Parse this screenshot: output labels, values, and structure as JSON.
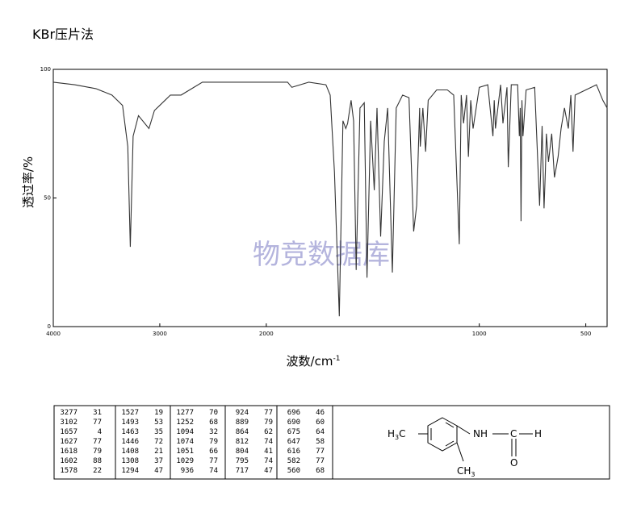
{
  "chart_data": {
    "type": "line",
    "title": "KBr压片法",
    "watermark": "物竞数据库",
    "xlabel": {
      "text": "波数/cm",
      "sup": "-1"
    },
    "ylabel": "透过率/%",
    "xlim": [
      4000,
      400
    ],
    "xscale_break": 2000,
    "xticks": [
      4000,
      3000,
      2000,
      1000,
      500
    ],
    "ylim": [
      0,
      100
    ],
    "yticks": [
      0,
      50,
      100
    ],
    "color": "#333333",
    "x": [
      4000,
      3800,
      3600,
      3450,
      3350,
      3300,
      3277,
      3250,
      3200,
      3102,
      3050,
      3000,
      2950,
      2900,
      2800,
      2600,
      2500,
      2200,
      2000,
      1900,
      1880,
      1800,
      1720,
      1700,
      1680,
      1657,
      1640,
      1627,
      1618,
      1602,
      1590,
      1578,
      1560,
      1540,
      1527,
      1510,
      1493,
      1480,
      1463,
      1446,
      1430,
      1408,
      1390,
      1360,
      1330,
      1308,
      1294,
      1280,
      1277,
      1265,
      1252,
      1240,
      1200,
      1150,
      1120,
      1094,
      1085,
      1074,
      1060,
      1051,
      1040,
      1029,
      1000,
      960,
      936,
      930,
      924,
      900,
      889,
      870,
      864,
      850,
      820,
      812,
      808,
      804,
      800,
      795,
      780,
      740,
      717,
      705,
      696,
      690,
      685,
      675,
      660,
      647,
      630,
      616,
      600,
      582,
      570,
      560,
      550,
      500,
      450,
      420,
      400
    ],
    "values": [
      95,
      94,
      92.5,
      90,
      86,
      70,
      31,
      74,
      82,
      77,
      84,
      86,
      88,
      90,
      90,
      95,
      95,
      95,
      95,
      95,
      93,
      95,
      94,
      90,
      60,
      4,
      80,
      77,
      79,
      88,
      80,
      22,
      85,
      87,
      19,
      80,
      53,
      85,
      35,
      72,
      85,
      21,
      85,
      90,
      89,
      37,
      47,
      85,
      70,
      85,
      68,
      88,
      92,
      92,
      90,
      32,
      90,
      79,
      90,
      66,
      88,
      77,
      93,
      94,
      74,
      88,
      77,
      94,
      79,
      93,
      62,
      94,
      94,
      74,
      85,
      41,
      88,
      74,
      92,
      93,
      47,
      78,
      46,
      60,
      75,
      64,
      75,
      58,
      66,
      77,
      85,
      77,
      90,
      68,
      90,
      92,
      94,
      88,
      85
    ]
  },
  "peak_table": {
    "groups": [
      [
        [
          3277,
          31
        ],
        [
          3102,
          77
        ],
        [
          1657,
          4
        ],
        [
          1627,
          77
        ],
        [
          1618,
          79
        ],
        [
          1602,
          88
        ],
        [
          1578,
          22
        ]
      ],
      [
        [
          1527,
          19
        ],
        [
          1493,
          53
        ],
        [
          1463,
          35
        ],
        [
          1446,
          72
        ],
        [
          1408,
          21
        ],
        [
          1308,
          37
        ],
        [
          1294,
          47
        ]
      ],
      [
        [
          1277,
          70
        ],
        [
          1252,
          68
        ],
        [
          1094,
          32
        ],
        [
          1074,
          79
        ],
        [
          1051,
          66
        ],
        [
          1029,
          77
        ],
        [
          936,
          74
        ]
      ],
      [
        [
          924,
          77
        ],
        [
          889,
          79
        ],
        [
          864,
          62
        ],
        [
          812,
          74
        ],
        [
          804,
          41
        ],
        [
          795,
          74
        ],
        [
          717,
          47
        ]
      ],
      [
        [
          696,
          46
        ],
        [
          690,
          60
        ],
        [
          675,
          64
        ],
        [
          647,
          58
        ],
        [
          616,
          77
        ],
        [
          582,
          77
        ],
        [
          560,
          68
        ]
      ]
    ]
  },
  "structure": {
    "h3c": [
      "H",
      "3",
      "C"
    ],
    "nh": "NH",
    "c": "C",
    "o": "O",
    "h": "H",
    "ch3": [
      "CH",
      "3"
    ]
  }
}
